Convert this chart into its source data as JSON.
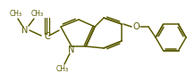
{
  "bg_color": "#ffffff",
  "line_color": "#5a5a00",
  "line_width": 1.1,
  "font_size": 6.5,
  "figsize": [
    2.18,
    0.92
  ],
  "dpi": 100,
  "xlim": [
    0,
    218
  ],
  "ylim": [
    0,
    92
  ]
}
